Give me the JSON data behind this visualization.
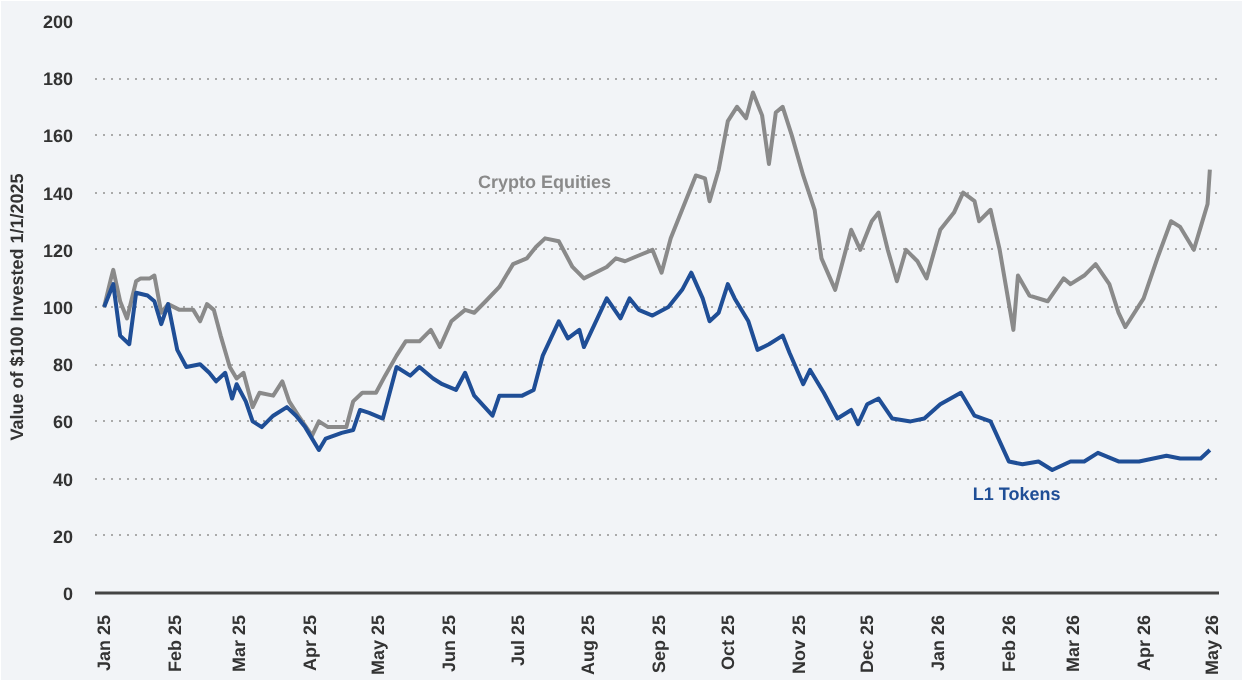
{
  "chart_data": {
    "type": "line",
    "ylabel": "Value of $100 Invested 1/1/2025",
    "xlim": [
      "2024-12-28",
      "2026-05-04"
    ],
    "ylim": [
      0,
      200
    ],
    "yticks": [
      0,
      20,
      40,
      60,
      80,
      100,
      120,
      140,
      160,
      180,
      200
    ],
    "xticks": [
      {
        "value": "2025-01-01",
        "label": "Jan 25"
      },
      {
        "value": "2025-02-01",
        "label": "Feb 25"
      },
      {
        "value": "2025-03-01",
        "label": "Mar 25"
      },
      {
        "value": "2025-04-01",
        "label": "Apr 25"
      },
      {
        "value": "2025-05-01",
        "label": "May 25"
      },
      {
        "value": "2025-06-01",
        "label": "Jun 25"
      },
      {
        "value": "2025-07-01",
        "label": "Jul 25"
      },
      {
        "value": "2025-08-01",
        "label": "Aug 25"
      },
      {
        "value": "2025-09-01",
        "label": "Sep 25"
      },
      {
        "value": "2025-10-01",
        "label": "Oct 25"
      },
      {
        "value": "2025-11-01",
        "label": "Nov 25"
      },
      {
        "value": "2025-12-01",
        "label": "Dec 25"
      },
      {
        "value": "2026-01-01",
        "label": "Jan 26"
      },
      {
        "value": "2026-02-01",
        "label": "Feb 26"
      },
      {
        "value": "2026-03-01",
        "label": "Mar 26"
      },
      {
        "value": "2026-04-01",
        "label": "Apr 26"
      },
      {
        "value": "2026-05-01",
        "label": "May 26"
      }
    ],
    "grid": "y",
    "marker": "none",
    "line_style": "solid",
    "series": [
      {
        "name": "Crypto Equities",
        "color": "#8a8a8a",
        "x": [
          "2025-01-01",
          "2025-01-04",
          "2025-01-05",
          "2025-01-08",
          "2025-01-11",
          "2025-01-15",
          "2025-01-17",
          "2025-01-21",
          "2025-01-23",
          "2025-01-26",
          "2025-01-29",
          "2025-02-03",
          "2025-02-09",
          "2025-02-12",
          "2025-02-15",
          "2025-02-18",
          "2025-02-21",
          "2025-02-25",
          "2025-02-28",
          "2025-03-03",
          "2025-03-07",
          "2025-03-10",
          "2025-03-16",
          "2025-03-20",
          "2025-03-23",
          "2025-03-27",
          "2025-04-02",
          "2025-04-05",
          "2025-04-09",
          "2025-04-17",
          "2025-04-20",
          "2025-04-24",
          "2025-04-30",
          "2025-05-04",
          "2025-05-09",
          "2025-05-13",
          "2025-05-19",
          "2025-05-24",
          "2025-05-28",
          "2025-06-02",
          "2025-06-08",
          "2025-06-12",
          "2025-06-17",
          "2025-06-23",
          "2025-06-29",
          "2025-07-05",
          "2025-07-09",
          "2025-07-13",
          "2025-07-19",
          "2025-07-25",
          "2025-07-30",
          "2025-08-09",
          "2025-08-13",
          "2025-08-17",
          "2025-08-23",
          "2025-08-29",
          "2025-09-02",
          "2025-09-06",
          "2025-09-11",
          "2025-09-17",
          "2025-09-21",
          "2025-09-23",
          "2025-09-27",
          "2025-10-01",
          "2025-10-05",
          "2025-10-09",
          "2025-10-12",
          "2025-10-16",
          "2025-10-19",
          "2025-10-22",
          "2025-10-25",
          "2025-10-29",
          "2025-11-03",
          "2025-11-08",
          "2025-11-11",
          "2025-11-17",
          "2025-11-24",
          "2025-11-28",
          "2025-12-03",
          "2025-12-06",
          "2025-12-10",
          "2025-12-14",
          "2025-12-18",
          "2025-12-23",
          "2025-12-27",
          "2026-01-02",
          "2026-01-08",
          "2026-01-12",
          "2026-01-17",
          "2026-01-19",
          "2026-01-24",
          "2026-01-28",
          "2026-02-03",
          "2026-02-05",
          "2026-02-10",
          "2026-02-18",
          "2026-02-25",
          "2026-02-28",
          "2026-03-06",
          "2026-03-11",
          "2026-03-17",
          "2026-03-21",
          "2026-03-24",
          "2026-04-01",
          "2026-04-07",
          "2026-04-13",
          "2026-04-17",
          "2026-04-23",
          "2026-04-26",
          "2026-04-29",
          "2026-04-30"
        ],
        "values": [
          100,
          110,
          113,
          102,
          96,
          109,
          110,
          110,
          111,
          98,
          101,
          99,
          99,
          95,
          101,
          99,
          90,
          79,
          75,
          77,
          65,
          70,
          69,
          74,
          67,
          62,
          55,
          60,
          58,
          58,
          67,
          70,
          70,
          76,
          83,
          88,
          88,
          92,
          86,
          95,
          99,
          98,
          102,
          107,
          115,
          117,
          121,
          124,
          123,
          114,
          110,
          114,
          117,
          116,
          118,
          120,
          112,
          124,
          134,
          146,
          145,
          137,
          148,
          165,
          170,
          166,
          175,
          167,
          150,
          168,
          170,
          160,
          146,
          134,
          117,
          106,
          127,
          120,
          130,
          133,
          120,
          109,
          120,
          116,
          110,
          127,
          133,
          140,
          137,
          130,
          134,
          120,
          92,
          111,
          104,
          102,
          110,
          108,
          111,
          115,
          108,
          98,
          93,
          103,
          117,
          130,
          128,
          120,
          128,
          136,
          148
        ]
      },
      {
        "name": "L1 Tokens",
        "color": "#1f4e96",
        "x": [
          "2025-01-01",
          "2025-01-04",
          "2025-01-05",
          "2025-01-08",
          "2025-01-12",
          "2025-01-15",
          "2025-01-20",
          "2025-01-23",
          "2025-01-26",
          "2025-01-29",
          "2025-02-02",
          "2025-02-06",
          "2025-02-12",
          "2025-02-16",
          "2025-02-19",
          "2025-02-23",
          "2025-02-26",
          "2025-02-28",
          "2025-03-04",
          "2025-03-07",
          "2025-03-11",
          "2025-03-16",
          "2025-03-22",
          "2025-03-26",
          "2025-03-30",
          "2025-04-05",
          "2025-04-08",
          "2025-04-15",
          "2025-04-20",
          "2025-04-23",
          "2025-04-27",
          "2025-05-03",
          "2025-05-09",
          "2025-05-15",
          "2025-05-19",
          "2025-05-25",
          "2025-05-29",
          "2025-06-04",
          "2025-06-08",
          "2025-06-12",
          "2025-06-20",
          "2025-06-23",
          "2025-06-29",
          "2025-07-03",
          "2025-07-08",
          "2025-07-12",
          "2025-07-19",
          "2025-07-23",
          "2025-07-28",
          "2025-07-30",
          "2025-08-09",
          "2025-08-15",
          "2025-08-19",
          "2025-08-23",
          "2025-08-29",
          "2025-09-05",
          "2025-09-11",
          "2025-09-15",
          "2025-09-20",
          "2025-09-23",
          "2025-09-27",
          "2025-10-01",
          "2025-10-04",
          "2025-10-10",
          "2025-10-14",
          "2025-10-19",
          "2025-10-25",
          "2025-10-28",
          "2025-11-03",
          "2025-11-06",
          "2025-11-12",
          "2025-11-18",
          "2025-11-24",
          "2025-11-27",
          "2025-12-01",
          "2025-12-06",
          "2025-12-12",
          "2025-12-20",
          "2025-12-26",
          "2026-01-02",
          "2026-01-11",
          "2026-01-17",
          "2026-01-24",
          "2026-02-01",
          "2026-02-07",
          "2026-02-14",
          "2026-02-20",
          "2026-02-28",
          "2026-03-06",
          "2026-03-12",
          "2026-03-21",
          "2026-03-30",
          "2026-04-11",
          "2026-04-17",
          "2026-04-26",
          "2026-04-30"
        ],
        "values": [
          100,
          106,
          108,
          90,
          87,
          105,
          104,
          102,
          94,
          101,
          85,
          79,
          80,
          77,
          74,
          77,
          68,
          73,
          67,
          60,
          58,
          62,
          65,
          62,
          58,
          50,
          54,
          56,
          57,
          64,
          63,
          61,
          79,
          76,
          79,
          75,
          73,
          71,
          77,
          69,
          62,
          69,
          69,
          69,
          71,
          83,
          95,
          89,
          92,
          86,
          103,
          96,
          103,
          99,
          97,
          100,
          106,
          112,
          103,
          95,
          98,
          108,
          103,
          95,
          85,
          87,
          90,
          84,
          73,
          78,
          70,
          61,
          64,
          59,
          66,
          68,
          61,
          60,
          61,
          66,
          70,
          62,
          60,
          46,
          45,
          46,
          43,
          46,
          46,
          49,
          46,
          46,
          48,
          47,
          47,
          50
        ]
      }
    ]
  }
}
